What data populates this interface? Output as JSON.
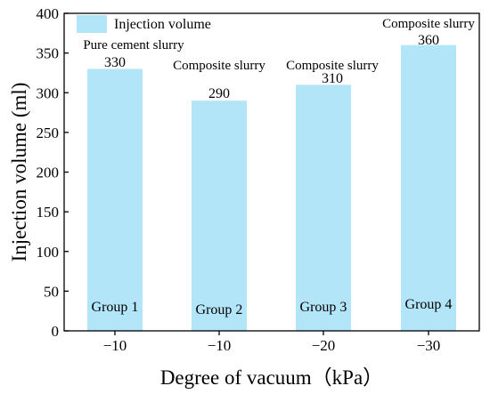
{
  "chart_data": {
    "type": "bar",
    "xlabel": "Degree of vacuum（kPa）",
    "ylabel": "Injection volume (ml)",
    "ylim": [
      0,
      400
    ],
    "yticks": [
      0,
      50,
      100,
      150,
      200,
      250,
      300,
      350,
      400
    ],
    "grid": false,
    "legend": {
      "position": "top-left",
      "entries": [
        "Injection volume"
      ]
    },
    "categories": [
      "−10",
      "−10",
      "−20",
      "−30"
    ],
    "series": [
      {
        "name": "Injection volume",
        "color": "#b3e5f8",
        "values": [
          330,
          290,
          310,
          360
        ]
      }
    ],
    "bars": [
      {
        "category": "−10",
        "value": 330,
        "value_label": "330",
        "annotation": "Pure cement slurry",
        "group": "Group 1"
      },
      {
        "category": "−10",
        "value": 290,
        "value_label": "290",
        "annotation": "Composite slurry",
        "group": "Group 2"
      },
      {
        "category": "−20",
        "value": 310,
        "value_label": "310",
        "annotation": "Composite slurry",
        "group": "Group 3"
      },
      {
        "category": "−30",
        "value": 360,
        "value_label": "360",
        "annotation": "Composite slurry",
        "group": "Group 4"
      }
    ]
  }
}
